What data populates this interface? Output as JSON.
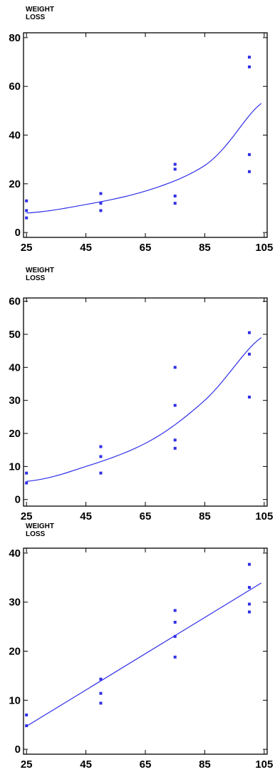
{
  "chart_data": [
    {
      "type": "scatter",
      "ylabel": "WEIGHT\nLOSS",
      "xlim": [
        24,
        106
      ],
      "ylim": [
        -2,
        82
      ],
      "xticks": [
        25,
        45,
        65,
        85,
        105
      ],
      "yticks": [
        0,
        20,
        40,
        60,
        80
      ],
      "points": [
        {
          "x": 25,
          "y": 13
        },
        {
          "x": 25,
          "y": 9
        },
        {
          "x": 25,
          "y": 6
        },
        {
          "x": 50,
          "y": 16
        },
        {
          "x": 50,
          "y": 12
        },
        {
          "x": 50,
          "y": 9
        },
        {
          "x": 75,
          "y": 28
        },
        {
          "x": 75,
          "y": 26
        },
        {
          "x": 75,
          "y": 15
        },
        {
          "x": 75,
          "y": 12
        },
        {
          "x": 100,
          "y": 72
        },
        {
          "x": 100,
          "y": 68
        },
        {
          "x": 100,
          "y": 32
        },
        {
          "x": 100,
          "y": 25
        }
      ],
      "fit": {
        "kind": "exponential",
        "x": [
          25,
          45,
          65,
          85,
          104
        ],
        "y": [
          8,
          11.5,
          17,
          27.5,
          53
        ]
      }
    },
    {
      "type": "scatter",
      "ylabel": "WEIGHT\nLOSS",
      "xlim": [
        24,
        106
      ],
      "ylim": [
        -2,
        61
      ],
      "xticks": [
        25,
        45,
        65,
        85,
        105
      ],
      "yticks": [
        0,
        10,
        20,
        30,
        40,
        50,
        60
      ],
      "points": [
        {
          "x": 25,
          "y": 8
        },
        {
          "x": 25,
          "y": 5
        },
        {
          "x": 50,
          "y": 16
        },
        {
          "x": 50,
          "y": 13
        },
        {
          "x": 50,
          "y": 8
        },
        {
          "x": 75,
          "y": 40
        },
        {
          "x": 75,
          "y": 28.5
        },
        {
          "x": 75,
          "y": 18
        },
        {
          "x": 75,
          "y": 15.5
        },
        {
          "x": 100,
          "y": 50.5
        },
        {
          "x": 100,
          "y": 44
        },
        {
          "x": 100,
          "y": 31
        }
      ],
      "fit": {
        "kind": "exponential",
        "x": [
          25,
          45,
          65,
          85,
          104
        ],
        "y": [
          5.5,
          10,
          17,
          30,
          49
        ]
      }
    },
    {
      "type": "scatter",
      "ylabel": "WEIGHT\nLOSS",
      "xlim": [
        24,
        106
      ],
      "ylim": [
        -1,
        41
      ],
      "xticks": [
        25,
        45,
        65,
        85,
        105
      ],
      "yticks": [
        0,
        10,
        20,
        30,
        40
      ],
      "points": [
        {
          "x": 25,
          "y": 7
        },
        {
          "x": 25,
          "y": 4.8
        },
        {
          "x": 50,
          "y": 14.3
        },
        {
          "x": 50,
          "y": 11.4
        },
        {
          "x": 50,
          "y": 9.4
        },
        {
          "x": 75,
          "y": 28.3
        },
        {
          "x": 75,
          "y": 25.9
        },
        {
          "x": 75,
          "y": 23
        },
        {
          "x": 75,
          "y": 18.8
        },
        {
          "x": 100,
          "y": 37.7
        },
        {
          "x": 100,
          "y": 33
        },
        {
          "x": 100,
          "y": 29.6
        },
        {
          "x": 100,
          "y": 28
        }
      ],
      "fit": {
        "kind": "linear",
        "x": [
          25,
          104
        ],
        "y": [
          4.7,
          33.9
        ]
      }
    }
  ],
  "colors": {
    "series": "#2f2fe8",
    "axis": "#000000"
  }
}
